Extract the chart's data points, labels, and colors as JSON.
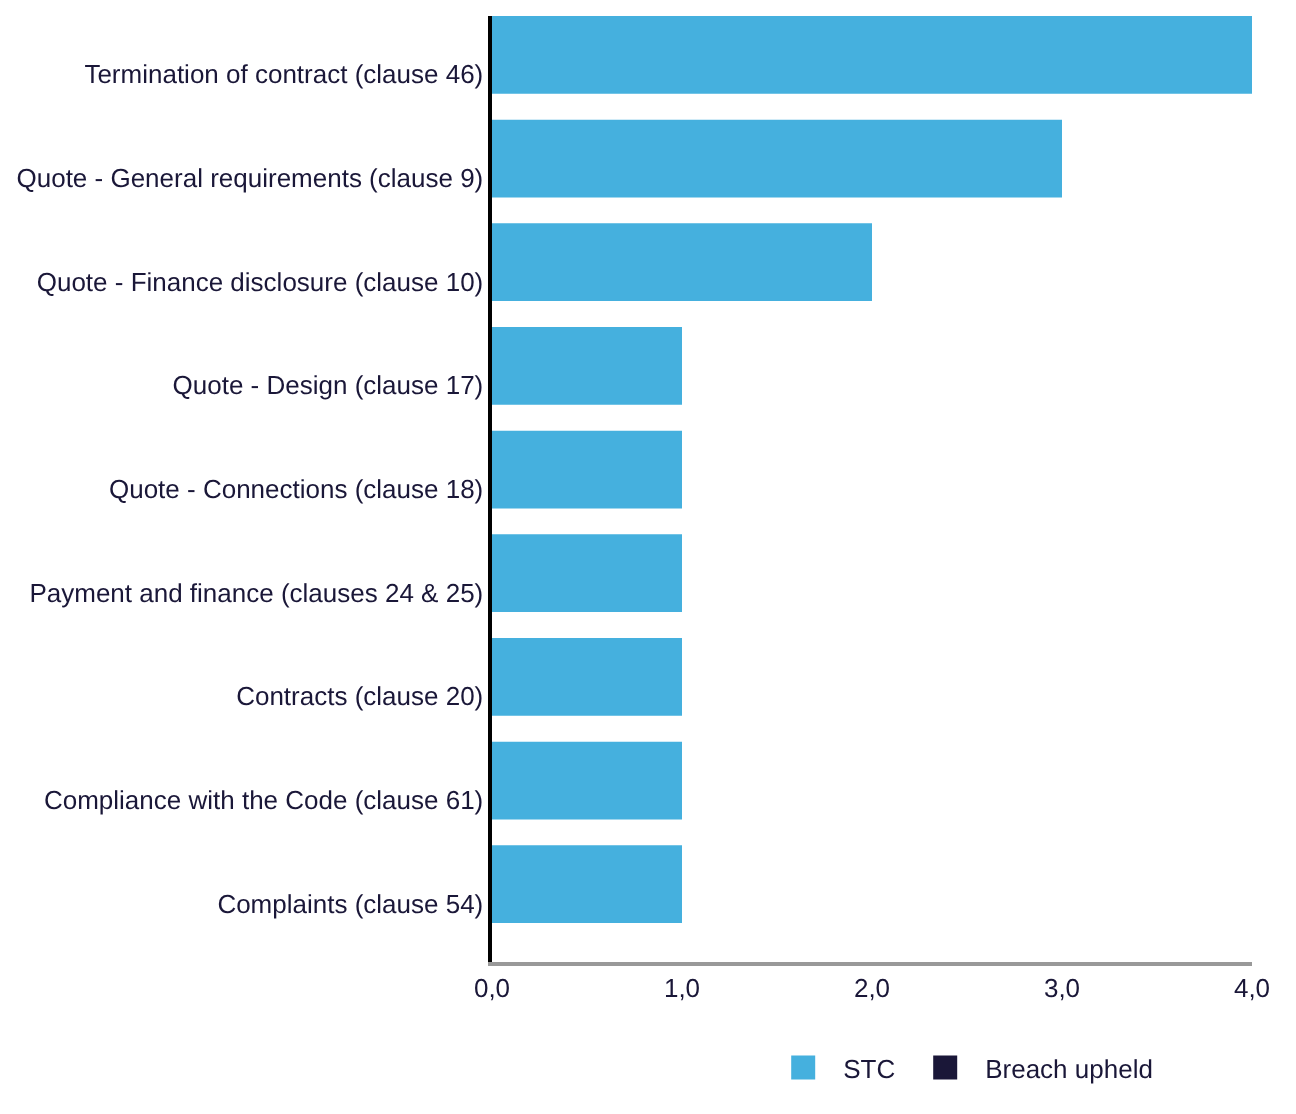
{
  "chart_data": {
    "type": "bar",
    "orientation": "horizontal",
    "categories": [
      "Termination of contract (clause 46)",
      "Quote - General requirements (clause 9)",
      "Quote - Finance disclosure (clause 10)",
      "Quote - Design (clause 17)",
      "Quote - Connections (clause 18)",
      "Payment and finance (clauses 24 & 25)",
      "Contracts (clause 20)",
      "Compliance with the Code (clause 61)",
      "Complaints (clause 54)"
    ],
    "series": [
      {
        "name": "STC",
        "color": "#45b0de",
        "values": [
          4,
          3,
          2,
          1,
          1,
          1,
          1,
          1,
          1
        ]
      },
      {
        "name": "Breach upheld",
        "color": "#1a1738",
        "values": [
          null,
          null,
          null,
          null,
          null,
          null,
          null,
          null,
          null
        ]
      }
    ],
    "xlim": [
      0,
      4
    ],
    "xticks": [
      {
        "value": 0,
        "label": "0,0"
      },
      {
        "value": 1,
        "label": "1,0"
      },
      {
        "value": 2,
        "label": "2,0"
      },
      {
        "value": 3,
        "label": "3,0"
      },
      {
        "value": 4,
        "label": "4,0"
      }
    ],
    "legend": "bottom"
  }
}
